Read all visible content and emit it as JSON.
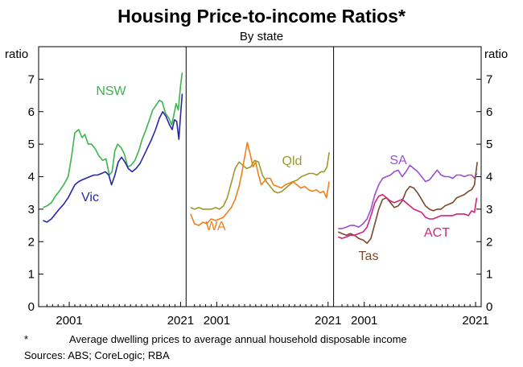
{
  "chart_data": {
    "type": "line",
    "title": "Housing Price-to-income Ratios*",
    "subtitle": "By state",
    "ylabel_left": "ratio",
    "ylabel_right": "ratio",
    "ylim": [
      0,
      8
    ],
    "yticks": [
      "0",
      "1",
      "2",
      "3",
      "4",
      "5",
      "6",
      "7"
    ],
    "xlim": [
      1995.5,
      2022
    ],
    "xticks": [
      "2001",
      "2021"
    ],
    "grid": false,
    "panels": [
      {
        "series": [
          {
            "name": "NSW",
            "color": "#3cb44b",
            "x": [
              1996.3,
              1997.0,
              1997.8,
              1998.5,
              1999.2,
              2000.0,
              2000.8,
              2001.4,
              2002.0,
              2002.7,
              2003.3,
              2003.8,
              2004.4,
              2005.0,
              2005.7,
              2006.3,
              2007.0,
              2007.6,
              2008.2,
              2008.7,
              2009.2,
              2009.7,
              2010.3,
              2010.9,
              2011.5,
              2012.1,
              2012.8,
              2013.5,
              2014.1,
              2014.8,
              2015.4,
              2016.0,
              2016.6,
              2017.2,
              2017.7,
              2018.3,
              2018.9,
              2019.4,
              2019.8,
              2020.2,
              2020.6,
              2021.0,
              2021.3
            ],
            "values": [
              3.05,
              3.1,
              3.2,
              3.4,
              3.55,
              3.75,
              4.0,
              4.6,
              5.35,
              5.45,
              5.2,
              5.3,
              5.0,
              5.0,
              4.85,
              4.65,
              4.5,
              4.55,
              4.05,
              4.15,
              4.8,
              5.0,
              4.9,
              4.7,
              4.3,
              4.35,
              4.5,
              4.8,
              5.15,
              5.45,
              5.75,
              6.05,
              6.2,
              6.35,
              6.3,
              5.95,
              5.8,
              5.6,
              5.9,
              6.25,
              6.05,
              6.8,
              7.2
            ]
          },
          {
            "name": "Vic",
            "color": "#2727a8",
            "x": [
              1996.3,
              1997.0,
              1997.8,
              1998.5,
              1999.2,
              2000.0,
              2000.8,
              2001.4,
              2002.0,
              2002.7,
              2003.3,
              2004.0,
              2004.7,
              2005.4,
              2006.1,
              2006.8,
              2007.5,
              2008.1,
              2008.6,
              2009.2,
              2009.8,
              2010.4,
              2011.0,
              2011.6,
              2012.3,
              2013.0,
              2013.7,
              2014.4,
              2015.1,
              2015.8,
              2016.5,
              2017.2,
              2017.8,
              2018.4,
              2019.0,
              2019.5,
              2019.9,
              2020.3,
              2020.7,
              2021.0,
              2021.3
            ],
            "values": [
              2.65,
              2.6,
              2.7,
              2.85,
              3.0,
              3.15,
              3.35,
              3.55,
              3.75,
              3.85,
              3.9,
              3.95,
              4.0,
              4.05,
              4.05,
              4.1,
              4.15,
              4.05,
              3.75,
              4.05,
              4.45,
              4.6,
              4.45,
              4.25,
              4.15,
              4.25,
              4.4,
              4.65,
              4.9,
              5.15,
              5.45,
              5.8,
              6.0,
              5.85,
              5.6,
              5.45,
              5.75,
              5.7,
              5.15,
              5.9,
              6.55
            ]
          }
        ],
        "labels": [
          {
            "text": "NSW",
            "color": "#3cb44b"
          },
          {
            "text": "Vic",
            "color": "#2727a8"
          }
        ]
      },
      {
        "series": [
          {
            "name": "Qld",
            "color": "#9a9a2a",
            "x": [
              1996.3,
              1997.0,
              1997.8,
              1998.5,
              1999.2,
              2000.0,
              2000.8,
              2001.5,
              2002.2,
              2002.9,
              2003.6,
              2004.3,
              2005.0,
              2005.7,
              2006.4,
              2007.1,
              2007.8,
              2008.5,
              2009.2,
              2009.9,
              2010.6,
              2011.3,
              2012.0,
              2012.7,
              2013.4,
              2014.1,
              2014.8,
              2015.5,
              2016.2,
              2016.9,
              2017.6,
              2018.3,
              2019.0,
              2019.7,
              2020.3,
              2020.8,
              2021.2
            ],
            "values": [
              3.05,
              3.0,
              3.05,
              3.0,
              3.0,
              3.0,
              3.05,
              3.0,
              3.1,
              3.35,
              3.8,
              4.25,
              4.45,
              4.35,
              4.25,
              4.3,
              4.5,
              4.45,
              4.05,
              3.85,
              3.7,
              3.55,
              3.5,
              3.55,
              3.65,
              3.75,
              3.85,
              3.9,
              4.0,
              4.05,
              4.1,
              4.1,
              4.05,
              4.15,
              4.15,
              4.3,
              4.75
            ]
          },
          {
            "name": "WA",
            "color": "#f07f1b",
            "x": [
              1996.3,
              1997.0,
              1997.8,
              1998.5,
              1999.2,
              2000.0,
              2000.8,
              2001.5,
              2002.2,
              2002.9,
              2003.6,
              2004.3,
              2005.0,
              2005.5,
              2006.0,
              2006.5,
              2007.0,
              2007.5,
              2008.0,
              2008.5,
              2009.0,
              2009.5,
              2010.0,
              2010.6,
              2011.2,
              2011.9,
              2012.6,
              2013.3,
              2014.0,
              2014.7,
              2015.4,
              2016.1,
              2016.8,
              2017.5,
              2018.2,
              2018.9,
              2019.6,
              2020.2,
              2020.7,
              2021.2
            ],
            "values": [
              2.85,
              2.55,
              2.5,
              2.6,
              2.55,
              2.7,
              2.65,
              2.7,
              2.75,
              2.9,
              3.05,
              3.3,
              3.7,
              4.1,
              4.6,
              5.05,
              4.7,
              4.3,
              4.45,
              4.05,
              3.75,
              3.85,
              3.95,
              3.95,
              3.75,
              3.7,
              3.65,
              3.75,
              3.8,
              3.85,
              3.75,
              3.65,
              3.7,
              3.6,
              3.55,
              3.6,
              3.5,
              3.55,
              3.35,
              3.85
            ]
          }
        ],
        "labels": [
          {
            "text": "Qld",
            "color": "#9a9a2a"
          },
          {
            "text": "WA",
            "color": "#f07f1b"
          }
        ]
      },
      {
        "series": [
          {
            "name": "SA",
            "color": "#9b4fd0",
            "x": [
              1996.3,
              1997.0,
              1997.8,
              1998.5,
              1999.2,
              2000.0,
              2000.8,
              2001.5,
              2002.2,
              2002.9,
              2003.6,
              2004.3,
              2005.0,
              2005.7,
              2006.4,
              2007.1,
              2007.8,
              2008.5,
              2009.2,
              2009.9,
              2010.6,
              2011.3,
              2012.0,
              2012.7,
              2013.4,
              2014.1,
              2014.8,
              2015.5,
              2016.2,
              2016.9,
              2017.6,
              2018.3,
              2019.0,
              2019.7,
              2020.3,
              2020.8,
              2021.2
            ],
            "values": [
              2.4,
              2.4,
              2.45,
              2.5,
              2.5,
              2.45,
              2.55,
              2.7,
              3.0,
              3.45,
              3.75,
              3.95,
              4.0,
              4.05,
              4.15,
              4.2,
              4.0,
              4.15,
              4.35,
              4.25,
              4.15,
              4.0,
              3.85,
              3.9,
              4.05,
              4.2,
              4.05,
              4.0,
              4.0,
              3.95,
              4.05,
              4.05,
              4.0,
              4.05,
              4.05,
              3.95,
              4.1
            ]
          },
          {
            "name": "Tas",
            "color": "#7a4a2a",
            "x": [
              1996.3,
              1997.0,
              1997.8,
              1998.5,
              1999.2,
              2000.0,
              2000.8,
              2001.5,
              2002.2,
              2002.9,
              2003.6,
              2004.3,
              2005.0,
              2005.7,
              2006.4,
              2007.1,
              2007.8,
              2008.5,
              2009.2,
              2009.9,
              2010.6,
              2011.3,
              2012.0,
              2012.7,
              2013.4,
              2014.1,
              2014.8,
              2015.5,
              2016.2,
              2016.9,
              2017.6,
              2018.3,
              2019.0,
              2019.7,
              2020.3,
              2020.8,
              2021.0,
              2021.3
            ],
            "values": [
              2.3,
              2.25,
              2.2,
              2.25,
              2.2,
              2.1,
              2.05,
              1.95,
              2.1,
              2.55,
              3.0,
              3.3,
              3.35,
              3.2,
              3.05,
              3.1,
              3.25,
              3.55,
              3.7,
              3.65,
              3.5,
              3.3,
              3.1,
              3.0,
              2.95,
              3.0,
              3.0,
              3.1,
              3.15,
              3.2,
              3.35,
              3.4,
              3.45,
              3.55,
              3.6,
              3.75,
              4.05,
              4.45
            ]
          },
          {
            "name": "ACT",
            "color": "#d4237a",
            "x": [
              1996.3,
              1997.0,
              1997.8,
              1998.5,
              1999.2,
              2000.0,
              2000.8,
              2001.5,
              2002.2,
              2002.9,
              2003.6,
              2004.3,
              2005.0,
              2005.7,
              2006.4,
              2007.1,
              2007.8,
              2008.5,
              2009.2,
              2009.9,
              2010.6,
              2011.3,
              2012.0,
              2012.7,
              2013.4,
              2014.1,
              2014.8,
              2015.5,
              2016.2,
              2016.9,
              2017.6,
              2018.3,
              2019.0,
              2019.7,
              2020.3,
              2020.8,
              2021.2
            ],
            "values": [
              2.15,
              2.1,
              2.15,
              2.2,
              2.2,
              2.25,
              2.3,
              2.45,
              2.8,
              3.2,
              3.4,
              3.45,
              3.35,
              3.25,
              3.2,
              3.25,
              3.3,
              3.2,
              3.1,
              3.0,
              2.95,
              2.9,
              2.75,
              2.7,
              2.7,
              2.75,
              2.8,
              2.8,
              2.8,
              2.8,
              2.85,
              2.85,
              2.85,
              2.8,
              2.95,
              2.9,
              3.35
            ]
          }
        ],
        "labels": [
          {
            "text": "SA",
            "color": "#9b4fd0"
          },
          {
            "text": "Tas",
            "color": "#7a4a2a"
          },
          {
            "text": "ACT",
            "color": "#d4237a"
          }
        ]
      }
    ]
  },
  "footnote": {
    "marker": "*",
    "text": "Average dwelling prices to average annual household disposable income"
  },
  "sources": "Sources: ABS; CoreLogic; RBA"
}
